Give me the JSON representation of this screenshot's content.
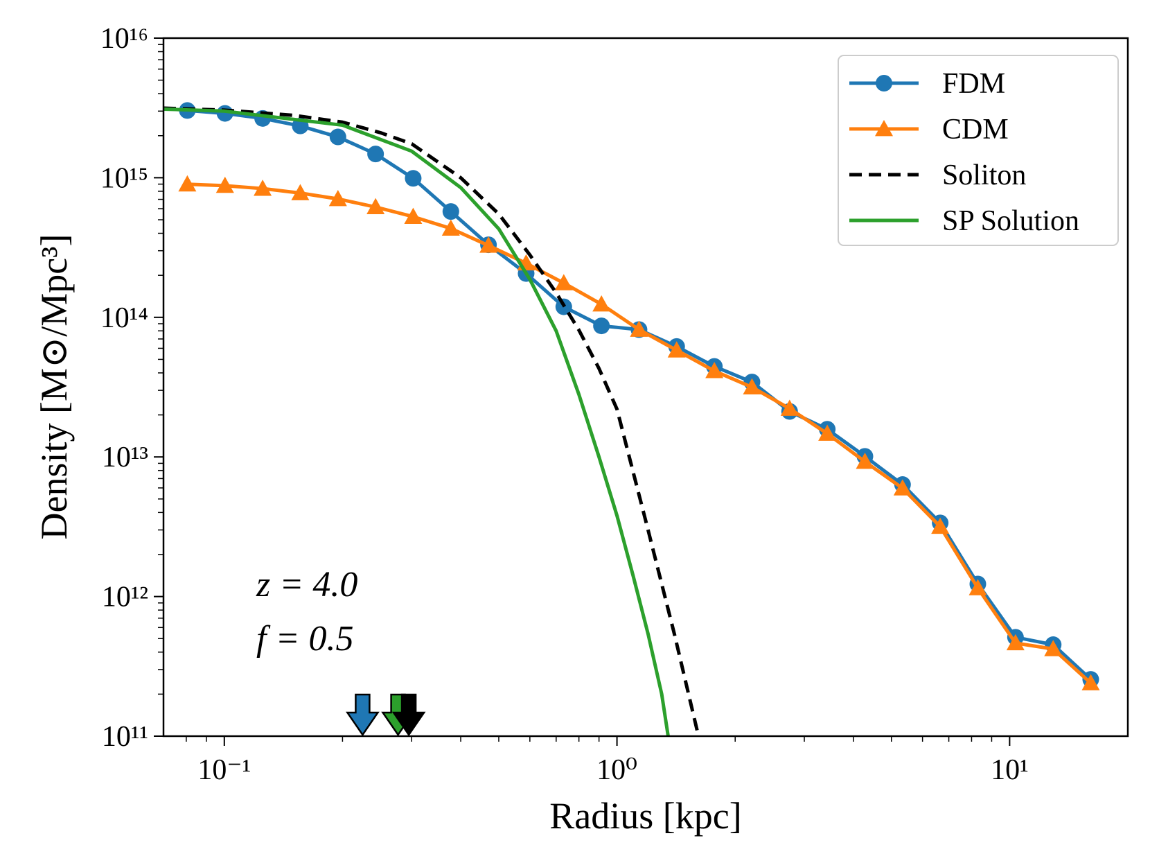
{
  "chart_data": {
    "type": "line",
    "xlabel": "Radius [kpc]",
    "ylabel": "Density [M⊙/Mpc³]",
    "xscale": "log",
    "yscale": "log",
    "xlim": [
      0.07,
      20
    ],
    "ylim": [
      100000000000.0,
      1e+16
    ],
    "xticks": [
      {
        "value": 0.1,
        "label": "10⁻¹"
      },
      {
        "value": 1,
        "label": "10⁰"
      },
      {
        "value": 10,
        "label": "10¹"
      }
    ],
    "yticks": [
      {
        "value": 100000000000.0,
        "label": "10¹¹"
      },
      {
        "value": 1000000000000.0,
        "label": "10¹²"
      },
      {
        "value": 10000000000000.0,
        "label": "10¹³"
      },
      {
        "value": 100000000000000.0,
        "label": "10¹⁴"
      },
      {
        "value": 1000000000000000.0,
        "label": "10¹⁵"
      },
      {
        "value": 1e+16,
        "label": "10¹⁶"
      }
    ],
    "xminorticks": [
      0.08,
      0.09,
      0.2,
      0.3,
      0.4,
      0.5,
      0.6,
      0.7,
      0.8,
      0.9,
      2,
      3,
      4,
      5,
      6,
      7,
      8,
      9
    ],
    "yminorticks": [
      200000000000.0,
      300000000000.0,
      400000000000.0,
      500000000000.0,
      600000000000.0,
      700000000000.0,
      800000000000.0,
      900000000000.0,
      2000000000000.0,
      3000000000000.0,
      4000000000000.0,
      5000000000000.0,
      6000000000000.0,
      7000000000000.0,
      8000000000000.0,
      9000000000000.0,
      20000000000000.0,
      30000000000000.0,
      40000000000000.0,
      50000000000000.0,
      60000000000000.0,
      70000000000000.0,
      80000000000000.0,
      90000000000000.0,
      200000000000000.0,
      300000000000000.0,
      400000000000000.0,
      500000000000000.0,
      600000000000000.0,
      700000000000000.0,
      800000000000000.0,
      900000000000000.0,
      2000000000000000.0,
      3000000000000000.0,
      4000000000000000.0,
      5000000000000000.0,
      6000000000000000.0,
      7000000000000000.0,
      8000000000000000.0,
      9000000000000000.0
    ],
    "legend": "upper right",
    "annotations": [
      "z = 4.0",
      "f = 0.5"
    ],
    "series": [
      {
        "name": "FDM",
        "color": "#1f77b4",
        "marker": "circle",
        "dash": "solid",
        "x": [
          0.0805,
          0.1004,
          0.1252,
          0.1561,
          0.1947,
          0.2428,
          0.3027,
          0.3775,
          0.4707,
          0.587,
          0.732,
          0.913,
          1.138,
          1.419,
          1.77,
          2.207,
          2.752,
          3.432,
          4.28,
          5.337,
          6.655,
          8.299,
          10.35,
          12.91,
          16.09
        ],
        "values": [
          3030000000000000.0,
          2890000000000000.0,
          2660000000000000.0,
          2350000000000000.0,
          1960000000000000.0,
          1480000000000000.0,
          990000000000000.0,
          573000000000000.0,
          331000000000000.0,
          206000000000000.0,
          119000000000000.0,
          86900000000000.0,
          81700000000000.0,
          61800000000000.0,
          44500000000000.0,
          34400000000000.0,
          21200000000000.0,
          15800000000000.0,
          10100000000000.0,
          6340000000000.0,
          3370000000000.0,
          1230000000000.0,
          511000000000.0,
          452000000000.0,
          255000000000.0
        ]
      },
      {
        "name": "CDM",
        "color": "#ff7f0e",
        "marker": "triangle",
        "dash": "solid",
        "x": [
          0.0805,
          0.1004,
          0.1252,
          0.1561,
          0.1947,
          0.2428,
          0.3027,
          0.3775,
          0.4707,
          0.587,
          0.732,
          0.913,
          1.138,
          1.419,
          1.77,
          2.207,
          2.752,
          3.432,
          4.28,
          5.337,
          6.655,
          8.299,
          10.35,
          12.91,
          16.09
        ],
        "values": [
          898000000000000.0,
          877000000000000.0,
          836000000000000.0,
          777000000000000.0,
          705000000000000.0,
          617000000000000.0,
          526000000000000.0,
          433000000000000.0,
          327000000000000.0,
          244000000000000.0,
          176000000000000.0,
          124000000000000.0,
          81700000000000.0,
          58100000000000.0,
          41300000000000.0,
          31600000000000.0,
          22200000000000.0,
          14700000000000.0,
          9250000000000.0,
          5970000000000.0,
          3170000000000.0,
          1150000000000.0,
          464000000000.0,
          421000000000.0,
          240000000000.0
        ]
      },
      {
        "name": "Soliton",
        "color": "#000000",
        "marker": "none",
        "dash": "dashed",
        "x": [
          0.07,
          0.1,
          0.15,
          0.2,
          0.25,
          0.3,
          0.4,
          0.5,
          0.6,
          0.7,
          0.8,
          0.9,
          1.0,
          1.2,
          1.4,
          1.6
        ],
        "values": [
          3150000000000000.0,
          3050000000000000.0,
          2800000000000000.0,
          2500000000000000.0,
          2100000000000000.0,
          1750000000000000.0,
          1000000000000000.0,
          550000000000000.0,
          280000000000000.0,
          150000000000000.0,
          81000000000000.0,
          43000000000000.0,
          22000000000000.0,
          3000000000000.0,
          540000000000.0,
          110000000000.0
        ]
      },
      {
        "name": "SP Solution",
        "color": "#2ca02c",
        "marker": "none",
        "dash": "solid",
        "x": [
          0.07,
          0.1,
          0.2,
          0.3,
          0.4,
          0.5,
          0.6,
          0.7,
          0.8,
          0.9,
          1.0,
          1.1,
          1.2,
          1.3,
          1.35
        ],
        "values": [
          3100000000000000.0,
          3000000000000000.0,
          2380000000000000.0,
          1550000000000000.0,
          850000000000000.0,
          430000000000000.0,
          187000000000000.0,
          80000000000000.0,
          28000000000000.0,
          10000000000000.0,
          3800000000000.0,
          1400000000000.0,
          540000000000.0,
          200000000000.0,
          100000000000.0
        ]
      }
    ],
    "arrows": [
      {
        "x": 0.225,
        "color": "#1f77b4"
      },
      {
        "x": 0.277,
        "color": "#2ca02c"
      },
      {
        "x": 0.295,
        "color": "#000000"
      }
    ]
  }
}
